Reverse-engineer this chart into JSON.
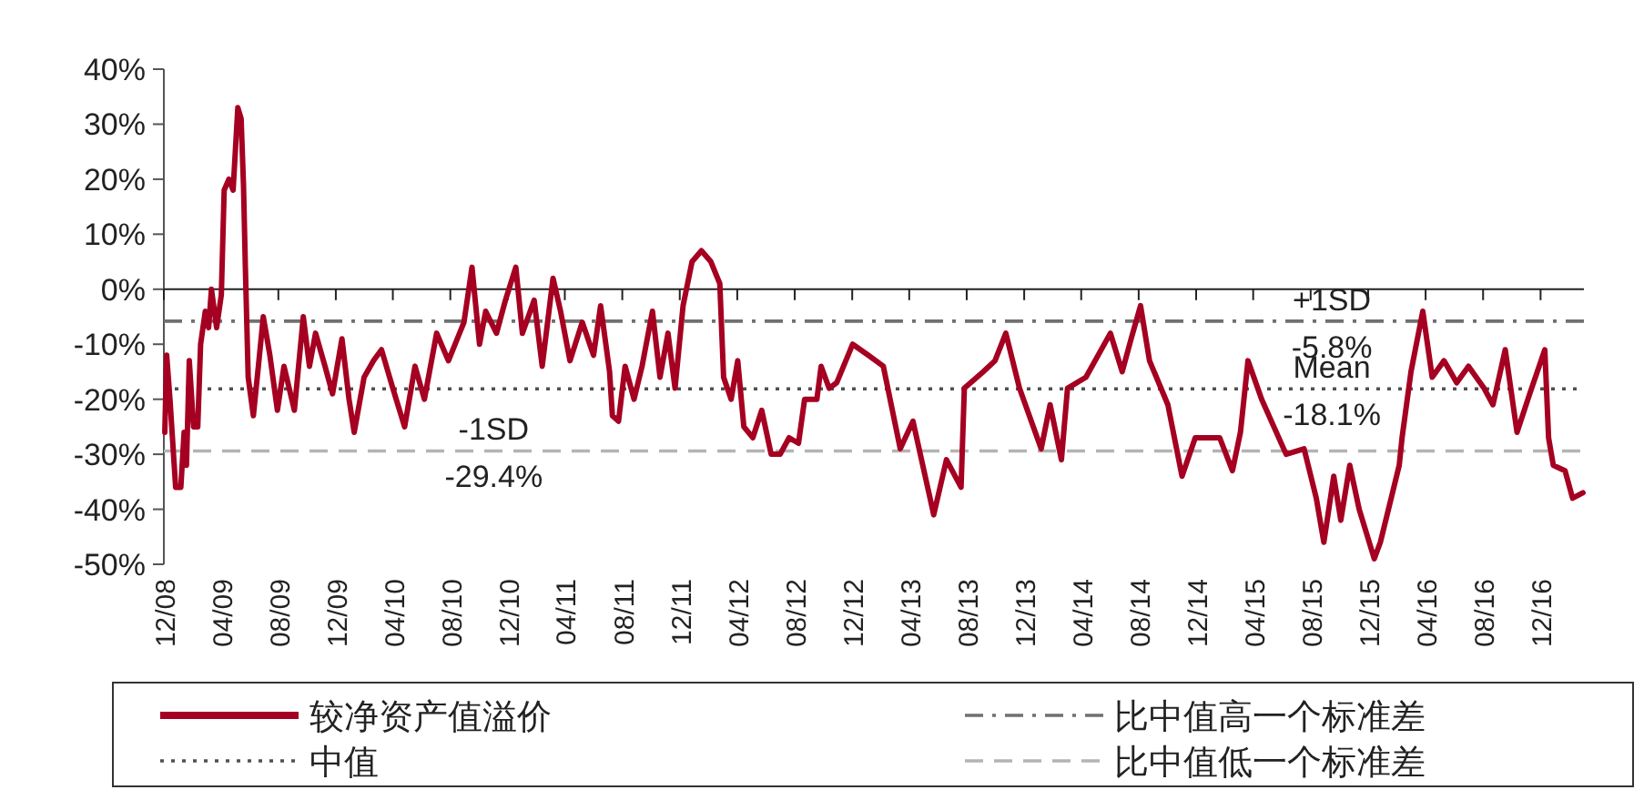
{
  "chart_data": {
    "type": "line",
    "legend": "bottom",
    "marker": "none",
    "line_style": "solid",
    "xlim": [
      "2008-12-01",
      "2017-03-03"
    ],
    "xticks": [
      {
        "value": "2008-12-01",
        "label": "12/08"
      },
      {
        "value": "2009-04-01",
        "label": "04/09"
      },
      {
        "value": "2009-08-01",
        "label": "08/09"
      },
      {
        "value": "2009-12-01",
        "label": "12/09"
      },
      {
        "value": "2010-04-01",
        "label": "04/10"
      },
      {
        "value": "2010-08-01",
        "label": "08/10"
      },
      {
        "value": "2010-12-01",
        "label": "12/10"
      },
      {
        "value": "2011-04-01",
        "label": "04/11"
      },
      {
        "value": "2011-08-01",
        "label": "08/11"
      },
      {
        "value": "2011-12-01",
        "label": "12/11"
      },
      {
        "value": "2012-04-01",
        "label": "04/12"
      },
      {
        "value": "2012-08-01",
        "label": "08/12"
      },
      {
        "value": "2012-12-01",
        "label": "12/12"
      },
      {
        "value": "2013-04-01",
        "label": "04/13"
      },
      {
        "value": "2013-08-01",
        "label": "08/13"
      },
      {
        "value": "2013-12-01",
        "label": "12/13"
      },
      {
        "value": "2014-04-01",
        "label": "04/14"
      },
      {
        "value": "2014-08-01",
        "label": "08/14"
      },
      {
        "value": "2014-12-01",
        "label": "12/14"
      },
      {
        "value": "2015-04-01",
        "label": "04/15"
      },
      {
        "value": "2015-08-01",
        "label": "08/15"
      },
      {
        "value": "2015-12-01",
        "label": "12/15"
      },
      {
        "value": "2016-04-01",
        "label": "04/16"
      },
      {
        "value": "2016-08-01",
        "label": "08/16"
      },
      {
        "value": "2016-12-01",
        "label": "12/16"
      }
    ],
    "ylim": [
      -50,
      40
    ],
    "yticks": [
      {
        "value": 40,
        "label": "40%"
      },
      {
        "value": 30,
        "label": "30%"
      },
      {
        "value": 20,
        "label": "20%"
      },
      {
        "value": 10,
        "label": "10%"
      },
      {
        "value": 0,
        "label": "0%"
      },
      {
        "value": -10,
        "label": "-10%"
      },
      {
        "value": -20,
        "label": "-20%"
      },
      {
        "value": -30,
        "label": "-30%"
      },
      {
        "value": -40,
        "label": "-40%"
      },
      {
        "value": -50,
        "label": "-50%"
      }
    ],
    "series": [
      {
        "name": "较净资产值溢价",
        "color": "#a50021",
        "x": [
          "2008-12-03",
          "2008-12-07",
          "2008-12-14",
          "2008-12-26",
          "2009-01-06",
          "2009-01-13",
          "2009-01-18",
          "2009-01-24",
          "2009-02-02",
          "2009-02-11",
          "2009-02-17",
          "2009-02-27",
          "2009-03-06",
          "2009-03-12",
          "2009-03-23",
          "2009-04-02",
          "2009-04-08",
          "2009-04-18",
          "2009-04-27",
          "2009-05-07",
          "2009-05-14",
          "2009-05-19",
          "2009-05-23",
          "2009-05-29",
          "2009-06-09",
          "2009-06-22",
          "2009-06-30",
          "2009-07-14",
          "2009-07-30",
          "2009-08-13",
          "2009-09-04",
          "2009-09-23",
          "2009-10-06",
          "2009-10-19",
          "2009-11-08",
          "2009-11-24",
          "2009-12-14",
          "2009-12-29",
          "2010-01-09",
          "2010-01-30",
          "2010-02-19",
          "2010-03-08",
          "2010-04-01",
          "2010-04-26",
          "2010-05-18",
          "2010-06-07",
          "2010-07-03",
          "2010-07-28",
          "2010-08-30",
          "2010-09-16",
          "2010-10-02",
          "2010-10-15",
          "2010-11-07",
          "2010-11-26",
          "2010-12-18",
          "2011-01-01",
          "2011-01-26",
          "2011-02-12",
          "2011-03-07",
          "2011-03-23",
          "2011-04-12",
          "2011-05-08",
          "2011-06-01",
          "2011-06-16",
          "2011-07-05",
          "2011-07-11",
          "2011-07-24",
          "2011-08-07",
          "2011-08-26",
          "2011-09-12",
          "2011-10-04",
          "2011-10-20",
          "2011-11-06",
          "2011-11-21",
          "2011-12-08",
          "2011-12-27",
          "2012-01-16",
          "2012-02-05",
          "2012-02-24",
          "2012-03-03",
          "2012-03-19",
          "2012-04-02",
          "2012-04-15",
          "2012-05-04",
          "2012-05-23",
          "2012-06-12",
          "2012-07-01",
          "2012-07-20",
          "2012-08-09",
          "2012-08-22",
          "2012-09-17",
          "2012-09-26",
          "2012-10-13",
          "2012-10-29",
          "2012-12-02",
          "2013-01-04",
          "2013-02-05",
          "2013-03-13",
          "2013-04-09",
          "2013-05-23",
          "2013-06-19",
          "2013-07-20",
          "2013-07-27",
          "2013-09-05",
          "2013-09-30",
          "2013-10-23",
          "2013-11-21",
          "2014-01-06",
          "2014-01-25",
          "2014-02-18",
          "2014-03-03",
          "2014-04-11",
          "2014-06-02",
          "2014-06-27",
          "2014-07-16",
          "2014-08-05",
          "2014-08-24",
          "2014-10-02",
          "2014-11-01",
          "2014-11-29",
          "2015-01-20",
          "2015-02-16",
          "2015-03-05",
          "2015-03-21",
          "2015-04-19",
          "2015-06-10",
          "2015-07-18",
          "2015-08-13",
          "2015-08-29",
          "2015-09-19",
          "2015-10-04",
          "2015-10-23",
          "2015-11-12",
          "2015-12-14",
          "2015-12-27",
          "2016-01-16",
          "2016-02-05",
          "2016-02-11",
          "2016-03-01",
          "2016-03-26",
          "2016-04-15",
          "2016-05-10",
          "2016-06-06",
          "2016-07-01",
          "2016-08-03",
          "2016-08-22",
          "2016-09-17",
          "2016-10-12",
          "2016-11-08",
          "2016-12-10",
          "2016-12-18",
          "2016-12-28",
          "2017-01-22",
          "2017-02-07",
          "2017-03-01"
        ],
        "values": [
          -26,
          -12,
          -20,
          -36,
          -36,
          -26,
          -32,
          -13,
          -25,
          -25,
          -10,
          -4,
          -7,
          0,
          -7,
          -1,
          18,
          20,
          18,
          33,
          31,
          19,
          4,
          -16,
          -23,
          -12,
          -5,
          -12,
          -22,
          -14,
          -22,
          -5,
          -14,
          -8,
          -14,
          -19,
          -9,
          -20,
          -26,
          -16,
          -13,
          -11,
          -18,
          -25,
          -14,
          -20,
          -8,
          -13,
          -6,
          4,
          -10,
          -4,
          -8,
          -2,
          4,
          -8,
          -2,
          -14,
          2,
          -4,
          -13,
          -6,
          -12,
          -3,
          -15,
          -23,
          -24,
          -14,
          -20,
          -14,
          -4,
          -16,
          -8,
          -18,
          -3,
          5,
          7,
          5,
          1,
          -16,
          -20,
          -13,
          -25,
          -27,
          -22,
          -30,
          -30,
          -27,
          -28,
          -20,
          -20,
          -14,
          -18,
          -17,
          -10,
          -12,
          -14,
          -29,
          -24,
          -41,
          -31,
          -36,
          -18,
          -15,
          -13,
          -8,
          -18,
          -29,
          -21,
          -31,
          -18,
          -16,
          -8,
          -15,
          -9,
          -3,
          -13,
          -21,
          -34,
          -27,
          -27,
          -33,
          -26,
          -13,
          -20,
          -30,
          -29,
          -38,
          -46,
          -34,
          -42,
          -32,
          -40,
          -49,
          -46,
          -39,
          -32,
          -27,
          -15,
          -4,
          -16,
          -13,
          -17,
          -14,
          -18,
          -21,
          -11,
          -26,
          -19,
          -11,
          -27,
          -32,
          -33,
          -38,
          -37
        ]
      }
    ],
    "ref_lines": [
      {
        "axis": "y",
        "value": -18.1,
        "label": "中值",
        "color": "#505050",
        "line_style": "dotted"
      },
      {
        "axis": "y",
        "value": -5.8,
        "label": "比中值高一个标准差",
        "color": "#707070",
        "line_style": "dashdot"
      },
      {
        "axis": "y",
        "value": -29.4,
        "label": "比中值低一个标准差",
        "color": "#b4b4b4",
        "line_style": "dashed"
      }
    ],
    "annotations": [
      {
        "text": "+1SD",
        "x": "2015-09-15",
        "y": -5.8
      },
      {
        "text": "-5.8%",
        "x": "2015-09-15",
        "y": -5.8
      },
      {
        "text": "Mean",
        "x": "2015-09-15",
        "y": -18.1
      },
      {
        "text": "-18.1%",
        "x": "2015-09-15",
        "y": -18.1
      },
      {
        "text": "-1SD",
        "x": "2010-11-01",
        "y": -29.4
      },
      {
        "text": "-29.4%",
        "x": "2010-11-01",
        "y": -29.4
      }
    ]
  }
}
